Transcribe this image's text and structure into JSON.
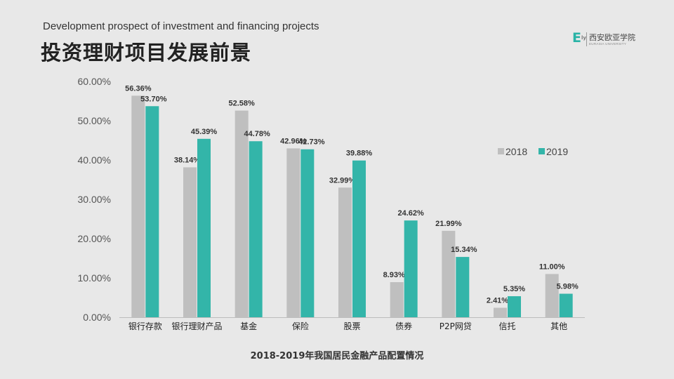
{
  "header": {
    "subtitle": "Development prospect of investment and financing projects",
    "title": "投资理财项目发展前景"
  },
  "logo": {
    "mark": "E",
    "mark_sup": "ly",
    "name": "西安欧亚学院",
    "sub": "EURASIA UNIVERSITY"
  },
  "colors": {
    "series_2018": "#bfbfbf",
    "series_2019": "#33b5a9",
    "background": "#e8e8e8"
  },
  "chart_data": {
    "type": "bar",
    "title": "2018-2019年我国居民金融产品配置情况",
    "xlabel": "",
    "ylabel": "",
    "ylim": [
      0,
      60
    ],
    "yticks": [
      "0.00%",
      "10.00%",
      "20.00%",
      "30.00%",
      "40.00%",
      "50.00%",
      "60.00%"
    ],
    "grid": false,
    "legend_position": "right",
    "categories": [
      "银行存款",
      "银行理财产品",
      "基金",
      "保险",
      "股票",
      "债券",
      "P2P网贷",
      "信托",
      "其他"
    ],
    "series": [
      {
        "name": "2018",
        "values": [
          56.36,
          38.14,
          52.58,
          42.96,
          32.99,
          8.93,
          21.99,
          2.41,
          11.0
        ],
        "labels": [
          "56.36%",
          "38.14%",
          "52.58%",
          "42.96%",
          "32.99%",
          "8.93%",
          "21.99%",
          "2.41%",
          "11.00%"
        ]
      },
      {
        "name": "2019",
        "values": [
          53.7,
          45.39,
          44.78,
          42.73,
          39.88,
          24.62,
          15.34,
          5.35,
          5.98
        ],
        "labels": [
          "53.70%",
          "45.39%",
          "44.78%",
          "42.73%",
          "39.88%",
          "24.62%",
          "15.34%",
          "5.35%",
          "5.98%"
        ]
      }
    ]
  }
}
